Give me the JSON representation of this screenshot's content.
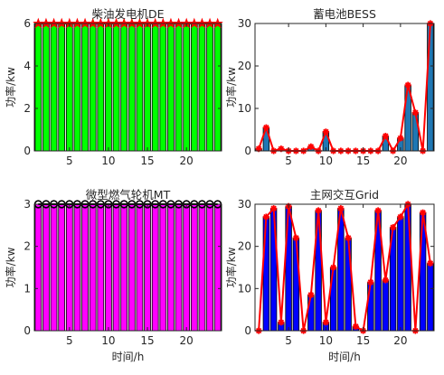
{
  "chart_data": [
    {
      "type": "bar",
      "title": "柴油发电机DE",
      "xlabel": "",
      "ylabel": "功率/kw",
      "x": [
        1,
        2,
        3,
        4,
        5,
        6,
        7,
        8,
        9,
        10,
        11,
        12,
        13,
        14,
        15,
        16,
        17,
        18,
        19,
        20,
        21,
        22,
        23,
        24
      ],
      "values": [
        6,
        6,
        6,
        6,
        6,
        6,
        6,
        6,
        6,
        6,
        6,
        6,
        6,
        6,
        6,
        6,
        6,
        6,
        6,
        6,
        6,
        6,
        6,
        6
      ],
      "xlim": [
        0.5,
        24.5
      ],
      "ylim": [
        0,
        6
      ],
      "xticks": [
        5,
        10,
        15,
        20
      ],
      "yticks": [
        0,
        2,
        4,
        6
      ],
      "bar_color": "#00ff00",
      "line_color": "#ff0000",
      "marker": "star",
      "grid": false
    },
    {
      "type": "bar",
      "title": "蓄电池BESS",
      "xlabel": "",
      "ylabel": "功率/kw",
      "x": [
        1,
        2,
        3,
        4,
        5,
        6,
        7,
        8,
        9,
        10,
        11,
        12,
        13,
        14,
        15,
        16,
        17,
        18,
        19,
        20,
        21,
        22,
        23,
        24
      ],
      "values": [
        0.5,
        5.5,
        0,
        0.5,
        0,
        0,
        0,
        1,
        0,
        4.5,
        0,
        0,
        0,
        0,
        0,
        0,
        0,
        3.5,
        0,
        3,
        15.5,
        9,
        0,
        30
      ],
      "xlim": [
        0.5,
        24.5
      ],
      "ylim": [
        0,
        30
      ],
      "xticks": [
        5,
        10,
        15,
        20
      ],
      "yticks": [
        0,
        10,
        20,
        30
      ],
      "bar_color": "#1f77b4",
      "line_color": "#ff0000",
      "marker": "asterisk",
      "grid": false
    },
    {
      "type": "bar",
      "title": "微型燃气轮机MT",
      "xlabel": "时间/h",
      "ylabel": "功率/kw",
      "x": [
        1,
        2,
        3,
        4,
        5,
        6,
        7,
        8,
        9,
        10,
        11,
        12,
        13,
        14,
        15,
        16,
        17,
        18,
        19,
        20,
        21,
        22,
        23,
        24
      ],
      "values": [
        3,
        3,
        3,
        3,
        3,
        3,
        3,
        3,
        3,
        3,
        3,
        3,
        3,
        3,
        3,
        3,
        3,
        3,
        3,
        3,
        3,
        3,
        3,
        3
      ],
      "xlim": [
        0.5,
        24.5
      ],
      "ylim": [
        0,
        3
      ],
      "xticks": [
        5,
        10,
        15,
        20
      ],
      "yticks": [
        0,
        1,
        2,
        3
      ],
      "bar_color": "#ff00ff",
      "line_color": "#000000",
      "marker": "circle",
      "grid": false
    },
    {
      "type": "bar",
      "title": "主网交互Grid",
      "xlabel": "时间/h",
      "ylabel": "功率/kw",
      "x": [
        1,
        2,
        3,
        4,
        5,
        6,
        7,
        8,
        9,
        10,
        11,
        12,
        13,
        14,
        15,
        16,
        17,
        18,
        19,
        20,
        21,
        22,
        23,
        24
      ],
      "values": [
        0,
        27,
        29,
        2,
        29.5,
        22,
        0,
        8.5,
        28.5,
        2,
        15,
        29,
        22,
        1,
        0,
        11.5,
        28.5,
        12,
        24.5,
        27,
        30,
        0,
        28,
        16
      ],
      "xlim": [
        0.5,
        24.5
      ],
      "ylim": [
        0,
        30
      ],
      "xticks": [
        5,
        10,
        15,
        20
      ],
      "yticks": [
        0,
        10,
        20,
        30
      ],
      "bar_color": "#0000ff",
      "line_color": "#ff0000",
      "marker": "asterisk",
      "grid": false
    }
  ]
}
